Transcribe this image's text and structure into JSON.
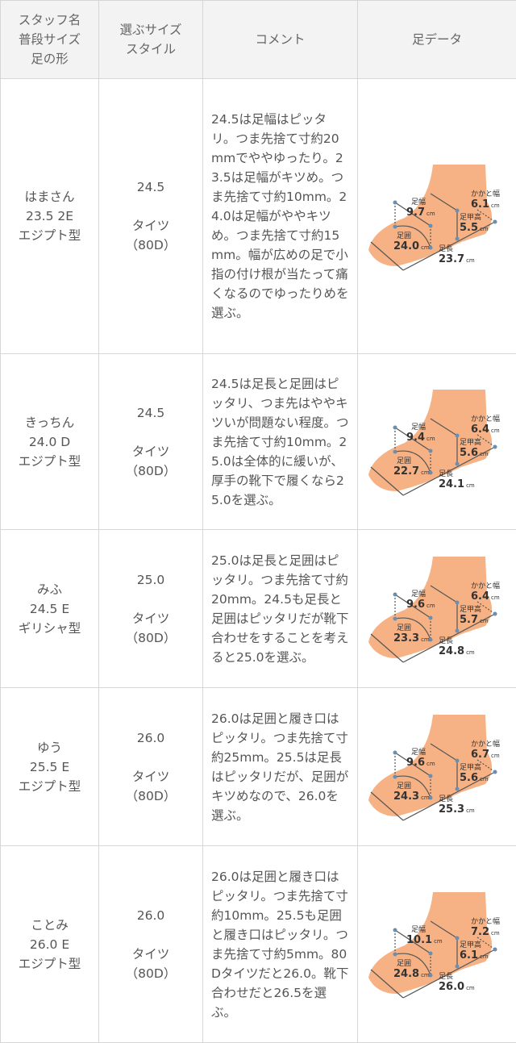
{
  "header": {
    "col1": [
      "スタッフ名",
      "普段サイズ",
      "足の形"
    ],
    "col2": [
      "選ぶサイズ",
      "スタイル"
    ],
    "col3": "コメント",
    "col4": "足データ"
  },
  "foot_labels": {
    "width": "足幅",
    "heel": "かかと幅",
    "instep": "足甲高",
    "girth": "足囲",
    "length": "足長",
    "unit": "cm"
  },
  "colors": {
    "foot": "#f4a46f",
    "header_bg": "#f3f3f3",
    "border": "#d6d6d6",
    "text": "#555555"
  },
  "rows": [
    {
      "name": "はまさん",
      "usual": "23.5 2E",
      "shape": "エジプト型",
      "size": "24.5",
      "style": "タイツ",
      "style_detail": "（80D）",
      "comment": "24.5は足幅はピッタリ。つま先捨て寸約20mmでややゆったり。23.5は足幅がキツめ。つま先捨て寸約10mm。24.0は足幅がややキツめ。つま先捨て寸約15mm。幅が広めの足で小指の付け根が当たって痛くなるのでゆったりめを選ぶ。",
      "foot": {
        "width": "9.7",
        "heel": "6.1",
        "instep": "5.5",
        "girth": "24.0",
        "length": "23.7"
      }
    },
    {
      "name": "きっちん",
      "usual": "24.0 D",
      "shape": "エジプト型",
      "size": "24.5",
      "style": "タイツ",
      "style_detail": "（80D）",
      "comment": "24.5は足長と足囲はピッタリ、つま先はややキツいが問題ない程度。つま先捨て寸約10mm。25.0は全体的に緩いが、厚手の靴下で履くなら25.0を選ぶ。",
      "foot": {
        "width": "9.4",
        "heel": "6.4",
        "instep": "5.6",
        "girth": "22.7",
        "length": "24.1"
      }
    },
    {
      "name": "みふ",
      "usual": "24.5 E",
      "shape": "ギリシャ型",
      "size": "25.0",
      "style": "タイツ",
      "style_detail": "（80D）",
      "comment": "25.0は足長と足囲はピッタリ。つま先捨て寸約20mm。24.5も足長と足囲はピッタリだが靴下合わせをすることを考えると25.0を選ぶ。",
      "foot": {
        "width": "9.6",
        "heel": "6.4",
        "instep": "5.7",
        "girth": "23.3",
        "length": "24.8"
      }
    },
    {
      "name": "ゆう",
      "usual": "25.5 E",
      "shape": "エジプト型",
      "size": "26.0",
      "style": "タイツ",
      "style_detail": "（80D）",
      "comment": "26.0は足囲と履き口はピッタリ。つま先捨て寸約25mm。25.5は足長はピッタリだが、足囲がキツめなので、26.0を選ぶ。",
      "foot": {
        "width": "9.6",
        "heel": "6.7",
        "instep": "5.6",
        "girth": "24.3",
        "length": "25.3"
      }
    },
    {
      "name": "ことみ",
      "usual": "26.0 E",
      "shape": "エジプト型",
      "size": "26.0",
      "style": "タイツ",
      "style_detail": "（80D）",
      "comment": "26.0は足囲と履き口はピッタリ。つま先捨て寸約10mm。25.5も足囲と履き口はピッタリ。つま先捨て寸約5mm。80Dタイツだと26.0。靴下合わせだと26.5を選ぶ。",
      "foot": {
        "width": "10.1",
        "heel": "7.2",
        "instep": "6.1",
        "girth": "24.8",
        "length": "26.0"
      }
    }
  ]
}
